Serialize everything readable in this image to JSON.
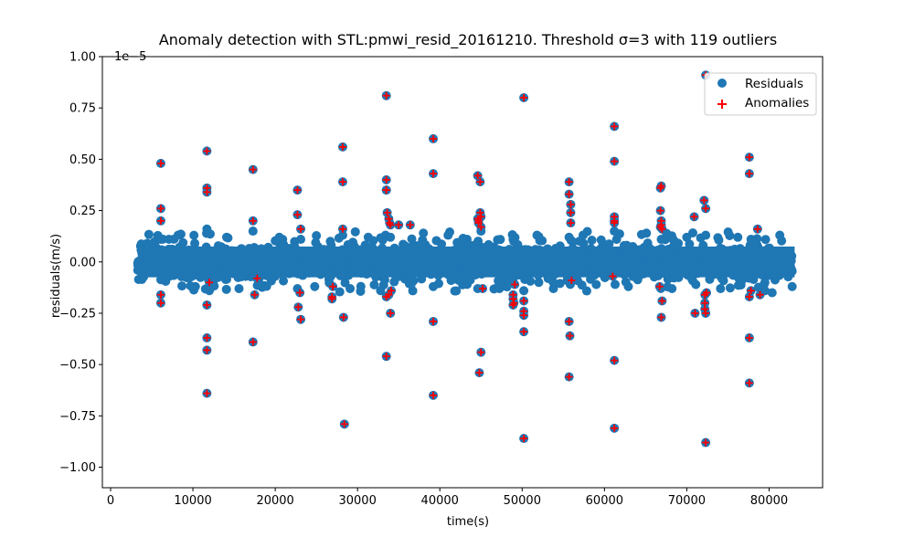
{
  "chart_data": {
    "type": "scatter",
    "title": "Anomaly detection with STL:pmwi_resid_20161210. Threshold σ=3 with 119 outliers",
    "xlabel": "time(s)",
    "ylabel": "residuals(m/s)",
    "y_offset_label": "1e−5",
    "xlim": [
      -1000,
      86500
    ],
    "ylim": [
      -11.0,
      10.0
    ],
    "y_scale_factor": 1e-05,
    "x_ticks": [
      0,
      10000,
      20000,
      30000,
      40000,
      50000,
      60000,
      70000,
      80000
    ],
    "x_tick_labels": [
      "0",
      "10000",
      "20000",
      "30000",
      "40000",
      "50000",
      "60000",
      "70000",
      "80000"
    ],
    "y_ticks": [
      -10.0,
      -7.5,
      -5.0,
      -2.5,
      0.0,
      2.5,
      5.0,
      7.5,
      10.0
    ],
    "y_tick_labels": [
      "−1.00",
      "−0.75",
      "−0.50",
      "−0.25",
      "0.00",
      "0.25",
      "0.50",
      "0.75",
      "1.00"
    ],
    "grid": false,
    "legend_position": "top-right",
    "colors": {
      "residuals": "#1f77b4",
      "anomalies": "#ff0000"
    },
    "residual_band": {
      "x_start": 3300,
      "x_end": 83100,
      "y_min": -1.5,
      "y_max": 1.5
    },
    "series": [
      {
        "name": "Residuals",
        "marker": "circle",
        "note_core": "dense band of residual points between about -1.5 and 1.5 (x1e-5) spanning x 3300-83100",
        "x": [
          6100,
          8200,
          10300,
          11700,
          12000,
          14100,
          15600,
          17300,
          18200,
          20500,
          22700,
          23100,
          24800,
          26700,
          28200,
          29100,
          31300,
          32800,
          33400,
          34000,
          36500,
          38000,
          39200,
          41000,
          43300,
          44600,
          45000,
          47100,
          48900,
          50200,
          51800,
          53800,
          55700,
          57400,
          59000,
          61200,
          62900,
          65100,
          66900,
          68200,
          70000,
          71100,
          72300,
          74100,
          76200,
          77800,
          79500,
          81300,
          82800
        ],
        "y": [
          1.1,
          1.3,
          -1.2,
          1.6,
          -1.4,
          1.2,
          -1.3,
          1.5,
          -1.1,
          1.2,
          -1.3,
          1.1,
          -1.2,
          1.0,
          1.3,
          -1.3,
          1.2,
          -1.4,
          1.3,
          1.2,
          -1.1,
          1.4,
          -1.2,
          1.3,
          1.1,
          -1.3,
          1.5,
          -1.2,
          1.1,
          -1.4,
          1.3,
          -1.3,
          1.2,
          1.3,
          -1.1,
          1.5,
          -1.2,
          1.4,
          1.1,
          -1.3,
          1.2,
          -1.1,
          1.3,
          -1.3,
          1.2,
          1.1,
          -1.4,
          1.3,
          -1.2
        ]
      },
      {
        "name": "Anomalies",
        "marker": "plus",
        "x": [
          6100,
          6100,
          6100,
          6100,
          6100,
          11700,
          11700,
          11700,
          11700,
          11700,
          11700,
          11700,
          17300,
          17300,
          17300,
          17500,
          22700,
          22700,
          22800,
          23100,
          23100,
          26900,
          26900,
          28200,
          28200,
          28200,
          28300,
          28400,
          33500,
          33500,
          33500,
          33500,
          33600,
          33800,
          33900,
          34000,
          33800,
          33500,
          33500,
          34000,
          35000,
          36400,
          39200,
          39200,
          39200,
          39200,
          44600,
          44600,
          44700,
          44700,
          44900,
          45000,
          45000,
          45000,
          44800,
          44900,
          48900,
          48900,
          49000,
          48900,
          50200,
          50200,
          50200,
          50200,
          50200,
          50200,
          55700,
          55700,
          55700,
          55700,
          55900,
          55900,
          55900,
          55800,
          61200,
          61200,
          61200,
          61200,
          61200,
          61200,
          61200,
          66800,
          66900,
          66800,
          66900,
          66800,
          67000,
          66900,
          67000,
          66900,
          70900,
          71000,
          72100,
          72300,
          72200,
          72300,
          72300,
          72300,
          72200,
          72200,
          77600,
          77600,
          77600,
          77600,
          77600,
          78900,
          78600,
          56000,
          61000,
          12000,
          17800,
          23000,
          27000,
          34100,
          45200,
          49100,
          72400,
          77800,
          66700
        ],
        "y": [
          4.8,
          2.6,
          2.0,
          -1.6,
          -2.0,
          5.4,
          3.6,
          3.4,
          -2.1,
          -3.7,
          -4.3,
          -6.4,
          4.5,
          2.0,
          -3.9,
          -1.6,
          3.5,
          2.3,
          -2.2,
          1.6,
          -2.8,
          -1.7,
          -1.8,
          5.6,
          3.9,
          1.6,
          -2.7,
          -7.9,
          8.1,
          4.0,
          3.5,
          3.5,
          2.4,
          2.1,
          1.9,
          1.8,
          -1.6,
          -1.7,
          -4.6,
          -2.5,
          1.8,
          1.8,
          6.0,
          4.3,
          -2.9,
          -6.5,
          4.2,
          2.1,
          2.0,
          1.9,
          2.4,
          2.2,
          1.7,
          -4.4,
          -5.4,
          3.9,
          -1.6,
          -1.8,
          -2.0,
          -2.1,
          8.0,
          -1.9,
          -2.4,
          -2.6,
          -3.4,
          -8.6,
          3.9,
          3.3,
          -2.9,
          -5.6,
          2.8,
          2.4,
          1.9,
          -3.6,
          6.6,
          4.9,
          2.2,
          1.9,
          -4.8,
          -8.1,
          2.0,
          3.6,
          3.7,
          2.5,
          2.0,
          1.7,
          -1.9,
          -2.7,
          1.6,
          1.8,
          2.2,
          -2.5,
          3.0,
          2.6,
          -2.3,
          -2.5,
          -8.8,
          9.1,
          -1.6,
          -2.0,
          5.1,
          4.3,
          -3.7,
          -5.9,
          -1.7,
          -1.6,
          1.6,
          -0.9,
          -0.7,
          -1.0,
          -0.8,
          -1.5,
          -1.2,
          -1.4,
          -1.3,
          -1.1,
          -1.5,
          -1.4,
          -1.2
        ]
      }
    ]
  }
}
